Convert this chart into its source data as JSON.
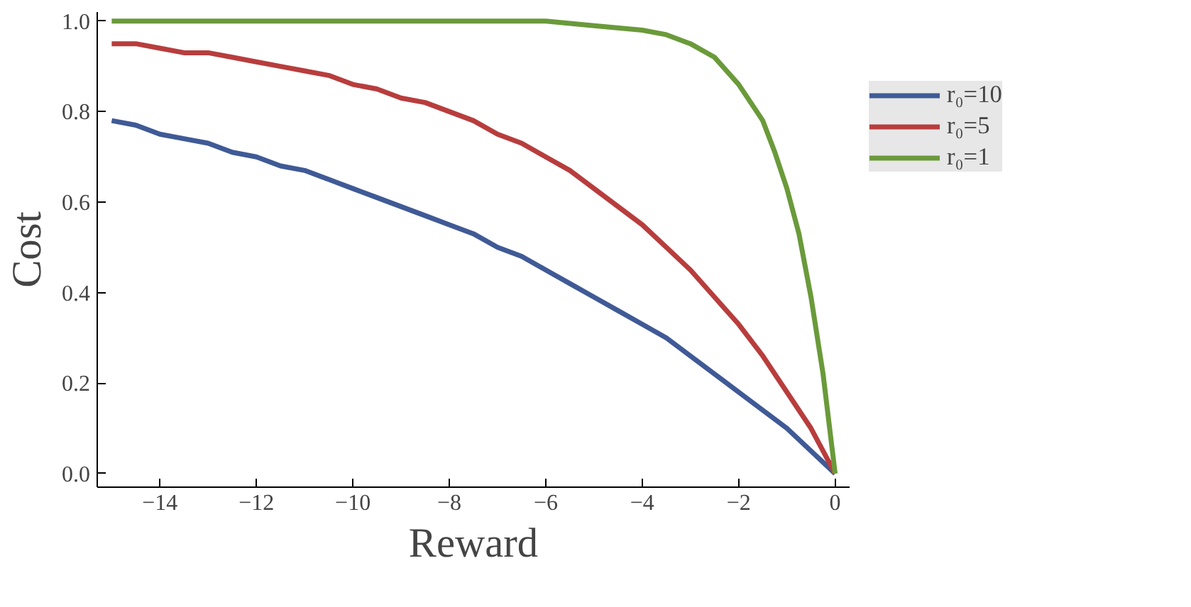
{
  "chart_data": {
    "type": "line",
    "xlabel": "Reward",
    "ylabel": "Cost",
    "xlim": [
      -15.3,
      0.3
    ],
    "ylim": [
      -0.03,
      1.02
    ],
    "xticks": [
      {
        "value": -14,
        "label": "−14"
      },
      {
        "value": -12,
        "label": "−12"
      },
      {
        "value": -10,
        "label": "−10"
      },
      {
        "value": -8,
        "label": "−8"
      },
      {
        "value": -6,
        "label": "−6"
      },
      {
        "value": -4,
        "label": "−4"
      },
      {
        "value": -2,
        "label": "−2"
      },
      0
    ],
    "yticks": [
      {
        "value": 0,
        "label": "0.0"
      },
      0.2,
      0.4,
      0.6,
      0.8,
      {
        "value": 1,
        "label": "1.0"
      }
    ],
    "grid": false,
    "legend": "right",
    "line_style": "solid",
    "marker": "none",
    "x": [
      -15,
      -14.5,
      -14,
      -13.5,
      -13,
      -12.5,
      -12,
      -11.5,
      -11,
      -10.5,
      -10,
      -9.5,
      -9,
      -8.5,
      -8,
      -7.5,
      -7,
      -6.5,
      -6,
      -5.5,
      -5,
      -4.5,
      -4,
      -3.5,
      -3,
      -2.5,
      -2,
      -1.5,
      -1,
      -0.5,
      0
    ],
    "series": [
      {
        "name": "r₀=10",
        "color": "#3f5a96",
        "values": [
          0.78,
          0.77,
          0.75,
          0.74,
          0.73,
          0.71,
          0.7,
          0.68,
          0.67,
          0.65,
          0.63,
          0.61,
          0.59,
          0.57,
          0.55,
          0.53,
          0.5,
          0.48,
          0.45,
          0.42,
          0.39,
          0.36,
          0.33,
          0.3,
          0.26,
          0.22,
          0.18,
          0.14,
          0.1,
          0.05,
          0
        ]
      },
      {
        "name": "r₀=5",
        "color": "#b83d3d",
        "values": [
          0.95,
          0.95,
          0.94,
          0.93,
          0.93,
          0.92,
          0.91,
          0.9,
          0.89,
          0.88,
          0.86,
          0.85,
          0.83,
          0.82,
          0.8,
          0.78,
          0.75,
          0.73,
          0.7,
          0.67,
          0.63,
          0.59,
          0.55,
          0.5,
          0.45,
          0.39,
          0.33,
          0.26,
          0.18,
          0.1,
          0
        ]
      },
      {
        "name": "r₀=1",
        "color": "#6a9a3a",
        "x": [
          -15,
          -10,
          -8,
          -6,
          -5,
          -4,
          -3.5,
          -3,
          -2.5,
          -2,
          -1.5,
          -1.25,
          -1,
          -0.75,
          -0.5,
          -0.25,
          0
        ],
        "values": [
          1.0,
          1.0,
          1.0,
          1.0,
          0.99,
          0.98,
          0.97,
          0.95,
          0.92,
          0.86,
          0.78,
          0.71,
          0.63,
          0.53,
          0.39,
          0.22,
          0
        ]
      }
    ]
  }
}
